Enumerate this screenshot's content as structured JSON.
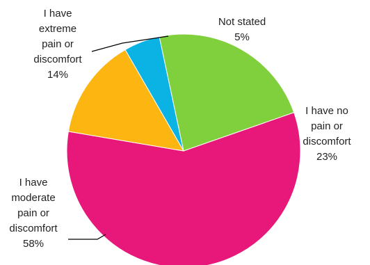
{
  "chart_data": {
    "type": "pie",
    "title": "",
    "slices": [
      {
        "name": "Not stated",
        "value": 5,
        "display": "5%",
        "color": "#0BB3E5",
        "lines": [
          "Not stated",
          "5%"
        ]
      },
      {
        "name": "I have no pain or discomfort",
        "value": 23,
        "display": "23%",
        "color": "#80CF3C",
        "lines": [
          "I have no",
          "pain or",
          "discomfort",
          "23%"
        ]
      },
      {
        "name": "I have moderate pain or discomfort",
        "value": 58,
        "display": "58%",
        "color": "#E8187A",
        "lines": [
          "I have",
          "moderate",
          "pain or",
          "discomfort",
          "58%"
        ]
      },
      {
        "name": "I have extreme pain or discomfort",
        "value": 14,
        "display": "14%",
        "color": "#FDB511",
        "lines": [
          "I have",
          "extreme",
          "pain or",
          "discomfort",
          "14%"
        ]
      }
    ]
  }
}
